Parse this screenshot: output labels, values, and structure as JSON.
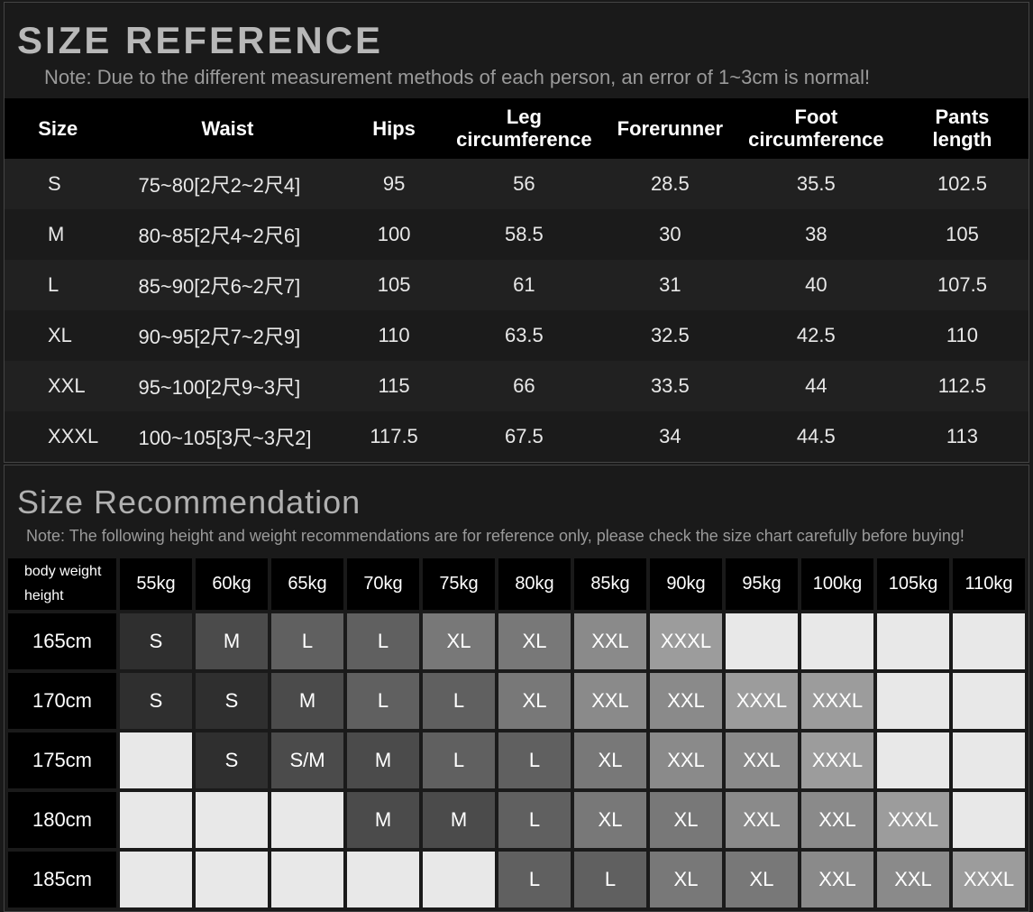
{
  "sizeReference": {
    "title": "SIZE REFERENCE",
    "note": "Note: Due to the different measurement methods of each person, an error of 1~3cm is normal!",
    "columns": [
      "Size",
      "Waist",
      "Hips",
      "Leg circumference",
      "Forerunner",
      "Foot circumference",
      "Pants length"
    ],
    "col_widths": [
      "120px",
      "280px",
      "120px",
      "180px",
      "150px",
      "180px",
      "160px"
    ],
    "title_color": "#b8b8b8",
    "note_color": "#9a9a9a",
    "header_bg": "#000000",
    "row_odd_bg": "#212121",
    "row_even_bg": "#1b1b1b",
    "rows": [
      {
        "size": "S",
        "waist": "75~80[2尺2~2尺4]",
        "hips": "95",
        "leg": "56",
        "fore": "28.5",
        "foot": "35.5",
        "pants": "102.5"
      },
      {
        "size": "M",
        "waist": "80~85[2尺4~2尺6]",
        "hips": "100",
        "leg": "58.5",
        "fore": "30",
        "foot": "38",
        "pants": "105"
      },
      {
        "size": "L",
        "waist": "85~90[2尺6~2尺7]",
        "hips": "105",
        "leg": "61",
        "fore": "31",
        "foot": "40",
        "pants": "107.5"
      },
      {
        "size": "XL",
        "waist": "90~95[2尺7~2尺9]",
        "hips": "110",
        "leg": "63.5",
        "fore": "32.5",
        "foot": "42.5",
        "pants": "110"
      },
      {
        "size": "XXL",
        "waist": "95~100[2尺9~3尺]",
        "hips": "115",
        "leg": "66",
        "fore": "33.5",
        "foot": "44",
        "pants": "112.5"
      },
      {
        "size": "XXXL",
        "waist": "100~105[3尺~3尺2]",
        "hips": "117.5",
        "leg": "67.5",
        "fore": "34",
        "foot": "44.5",
        "pants": "113"
      }
    ]
  },
  "recommendation": {
    "title": "Size Recommendation",
    "note": "Note: The following height and weight recommendations are for reference only, please check the size chart carefully before buying!",
    "cornerTop": "body weight",
    "cornerBottom": "height",
    "weights": [
      "55kg",
      "60kg",
      "65kg",
      "70kg",
      "75kg",
      "80kg",
      "85kg",
      "90kg",
      "95kg",
      "100kg",
      "105kg",
      "110kg"
    ],
    "heights": [
      "165cm",
      "170cm",
      "175cm",
      "180cm",
      "185cm"
    ],
    "palette": {
      "S": "#2f2f2f",
      "S/M": "#4b4b4b",
      "M": "#4b4b4b",
      "L": "#606060",
      "XL": "#787878",
      "XXL": "#8a8a8a",
      "XXXL": "#9c9c9c",
      "blank": "#e8e8e8",
      "header_bg": "#000000"
    },
    "grid": [
      [
        "S",
        "M",
        "L",
        "L",
        "XL",
        "XL",
        "XXL",
        "XXXL",
        "",
        "",
        "",
        ""
      ],
      [
        "S",
        "S",
        "M",
        "L",
        "L",
        "XL",
        "XXL",
        "XXL",
        "XXXL",
        "XXXL",
        "",
        ""
      ],
      [
        "",
        "S",
        "S/M",
        "M",
        "L",
        "L",
        "XL",
        "XXL",
        "XXL",
        "XXXL",
        "",
        ""
      ],
      [
        "",
        "",
        "",
        "M",
        "M",
        "L",
        "XL",
        "XL",
        "XXL",
        "XXL",
        "XXXL",
        ""
      ],
      [
        "",
        "",
        "",
        "",
        "",
        "L",
        "L",
        "XL",
        "XL",
        "XXL",
        "XXL",
        "XXXL"
      ]
    ]
  }
}
